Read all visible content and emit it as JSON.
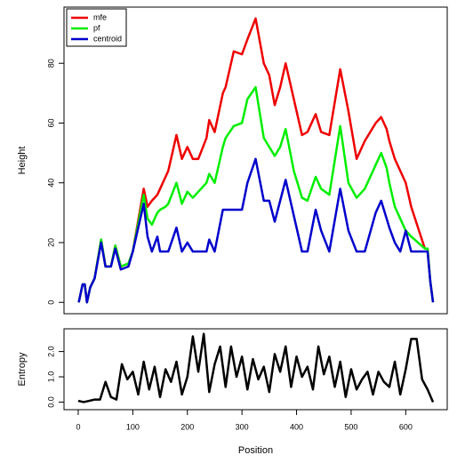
{
  "chart_data": [
    {
      "type": "line",
      "ylabel": "Height",
      "x": [
        1,
        8,
        12,
        16,
        22,
        30,
        42,
        50,
        60,
        68,
        78,
        92,
        100,
        120,
        127,
        135,
        145,
        150,
        160,
        165,
        180,
        190,
        200,
        210,
        220,
        235,
        240,
        250,
        265,
        270,
        285,
        300,
        310,
        325,
        340,
        350,
        360,
        370,
        380,
        395,
        410,
        420,
        435,
        445,
        460,
        480,
        495,
        510,
        525,
        545,
        555,
        565,
        570,
        580,
        590,
        600,
        610,
        635,
        640,
        645,
        650
      ],
      "series": [
        {
          "name": "mfe",
          "color": "#ee0000",
          "values": [
            0,
            6,
            6,
            0,
            5,
            8,
            21,
            12,
            12,
            19,
            12,
            13,
            17,
            38,
            32,
            34,
            36,
            38,
            42,
            44,
            56,
            48,
            52,
            48,
            48,
            55,
            61,
            57,
            70,
            72,
            84,
            83,
            88,
            95,
            80,
            76,
            66,
            72,
            80,
            68,
            56,
            57,
            63,
            57,
            56,
            78,
            64,
            48,
            54,
            60,
            62,
            58,
            54,
            48,
            44,
            40,
            32,
            18,
            18,
            7,
            0
          ]
        },
        {
          "name": "pf",
          "color": "#00ee00",
          "values": [
            0,
            6,
            6,
            0,
            5,
            8,
            21,
            12,
            12,
            19,
            12,
            13,
            17,
            36,
            28,
            26,
            30,
            31,
            32,
            33,
            40,
            33,
            37,
            35,
            37,
            40,
            43,
            40,
            52,
            55,
            59,
            60,
            68,
            72,
            55,
            52,
            49,
            52,
            58,
            44,
            35,
            34,
            42,
            38,
            36,
            59,
            40,
            35,
            38,
            46,
            50,
            45,
            40,
            32,
            28,
            24,
            22,
            18,
            18,
            7,
            0
          ]
        },
        {
          "name": "centroid",
          "color": "#0000cc",
          "values": [
            0,
            6,
            6,
            0,
            5,
            8,
            20,
            12,
            12,
            18,
            11,
            12,
            17,
            33,
            22,
            17,
            22,
            17,
            17,
            17,
            25,
            17,
            20,
            17,
            17,
            17,
            21,
            17,
            31,
            31,
            31,
            31,
            40,
            48,
            34,
            34,
            27,
            34,
            41,
            29,
            17,
            17,
            31,
            24,
            17,
            38,
            24,
            17,
            17,
            30,
            34,
            28,
            25,
            20,
            17,
            24,
            17,
            17,
            17,
            7,
            0
          ]
        }
      ],
      "xlim": [
        -26,
        676
      ],
      "ylim": [
        -3.8,
        98.8
      ],
      "yticks": [
        0,
        20,
        40,
        60,
        80
      ],
      "legend": "top-left"
    },
    {
      "type": "line",
      "ylabel": "Entropy",
      "xlabel": "Position",
      "x": [
        0,
        10,
        20,
        30,
        40,
        50,
        60,
        70,
        80,
        90,
        100,
        110,
        120,
        130,
        140,
        150,
        160,
        170,
        180,
        190,
        200,
        210,
        220,
        230,
        240,
        250,
        260,
        270,
        280,
        290,
        300,
        310,
        320,
        330,
        340,
        350,
        360,
        370,
        380,
        390,
        400,
        410,
        420,
        430,
        440,
        450,
        460,
        470,
        480,
        490,
        500,
        510,
        520,
        530,
        540,
        550,
        560,
        570,
        580,
        590,
        600,
        610,
        620,
        630,
        640,
        650
      ],
      "series": [
        {
          "name": "Entropy",
          "color": "#000000",
          "values": [
            0.05,
            0.0,
            0.05,
            0.1,
            0.1,
            0.8,
            0.2,
            0.1,
            1.5,
            0.9,
            1.2,
            0.3,
            1.6,
            0.5,
            1.4,
            0.2,
            1.3,
            0.8,
            1.6,
            0.3,
            1.0,
            2.6,
            1.2,
            2.7,
            0.4,
            1.5,
            2.2,
            0.6,
            2.2,
            1.0,
            1.8,
            0.5,
            1.7,
            0.9,
            1.4,
            0.4,
            1.9,
            1.2,
            2.2,
            0.6,
            1.8,
            1.0,
            1.4,
            0.5,
            2.2,
            1.1,
            1.8,
            0.6,
            1.6,
            0.2,
            1.3,
            0.5,
            0.9,
            1.2,
            0.3,
            1.2,
            0.8,
            0.6,
            1.6,
            0.3,
            1.3,
            2.5,
            2.5,
            0.9,
            0.5,
            0.0
          ]
        }
      ],
      "xlim": [
        -26,
        676
      ],
      "ylim": [
        -0.3,
        2.9
      ],
      "yticks": [
        {
          "value": 0,
          "label": "0.0"
        },
        {
          "value": 1,
          "label": "1.0"
        },
        {
          "value": 2,
          "label": "2.0"
        }
      ],
      "xticks": [
        0,
        100,
        200,
        300,
        400,
        500,
        600
      ]
    }
  ]
}
